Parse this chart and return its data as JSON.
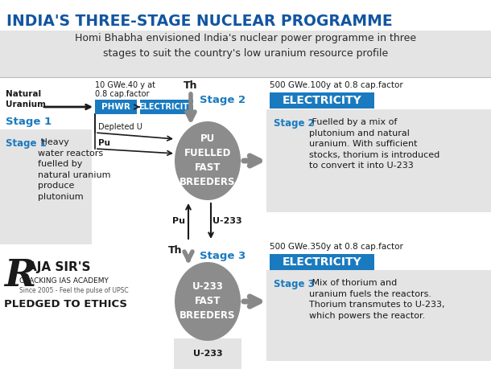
{
  "title": "INDIA'S THREE-STAGE NUCLEAR PROGRAMME",
  "subtitle_line1": "Homi Bhabha envisioned India's nuclear power programme in three",
  "subtitle_line2": "stages to suit the country's low uranium resource profile",
  "title_color": "#1255a0",
  "subtitle_bg": "#e4e4e4",
  "body_bg": "#ffffff",
  "stage_label_color": "#1a7abf",
  "circle_color": "#8c8c8c",
  "circle_text_color": "#ffffff",
  "phwr_color": "#1a7abf",
  "elec_bg": "#1a7abf",
  "elec_text": "ELECTRICITY",
  "phwr_text": "PHWR",
  "nat_uranium_text": "Natural\nUranium",
  "gwe_label1": "10 GWe.40 y at",
  "gwe_label1b": "0.8 cap.factor",
  "stage2_gwe": "500 GWe.100y at 0.8 cap.factor",
  "stage3_gwe": "500 GWe.350y at 0.8 cap.factor",
  "stage1_label": "Stage 1",
  "stage2_label": "Stage 2",
  "stage3_label": "Stage 3",
  "circle1_text": "PU\nFUELLED\nFAST\nBREEDERS",
  "circle2_text": "U-233\nFAST\nBREEDERS",
  "depleted_u": "Depleted U",
  "pu_label": "Pu",
  "u233_label": "U-233",
  "th_label": "Th",
  "stage1_bold": "Stage 1",
  "stage1_rest": " Heavy\nwater reactors\nfuelled by\nnatural uranium\nproduce\nplutonium",
  "stage2_bold": "Stage 2",
  "stage2_rest": " Fuelled by a mix of\nplutonium and natural\nuranium. With sufficient\nstocks, thorium is introduced\nto convert it into U-233",
  "stage3_bold": "Stage 3",
  "stage3_rest": " Mix of thorium and\nuranium fuels the reactors.\nThorium transmutes to U-233,\nwhich powers the reactor.",
  "logo_r": "R",
  "logo_main": "AJA SIR'S",
  "logo_sub": "CRACKING IAS ACADEMY",
  "logo_since": "Since 2005 - Feel the pulse of UPSC",
  "logo_pledged": "PLEDGED TO ETHICS",
  "dark": "#1a1a1a",
  "mid_gray": "#555555",
  "box_bg": "#e4e4e4",
  "arrow_gray": "#888888"
}
